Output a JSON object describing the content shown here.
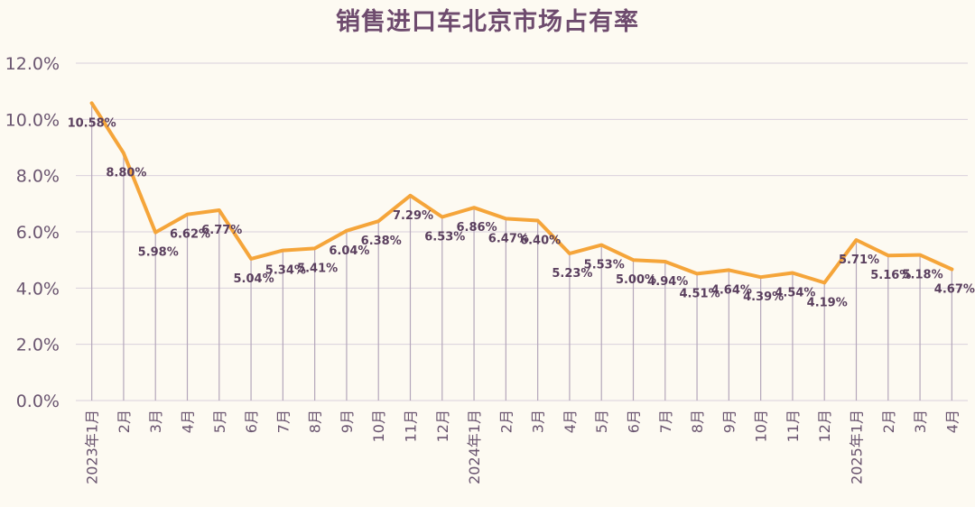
{
  "chart_data": {
    "type": "line",
    "title": "销售进口车北京市场占有率",
    "xlabel": "",
    "ylabel": "",
    "categories": [
      "2023年1月",
      "2月",
      "3月",
      "4月",
      "5月",
      "6月",
      "7月",
      "8月",
      "9月",
      "10月",
      "11月",
      "12月",
      "2024年1月",
      "2月",
      "3月",
      "4月",
      "5月",
      "6月",
      "7月",
      "8月",
      "9月",
      "10月",
      "11月",
      "12月",
      "2025年1月",
      "2月",
      "3月",
      "4月"
    ],
    "series": [
      {
        "values": [
          10.58,
          8.8,
          5.98,
          6.62,
          6.77,
          5.04,
          5.34,
          5.41,
          6.04,
          6.38,
          7.29,
          6.53,
          6.86,
          6.47,
          6.4,
          5.23,
          5.53,
          5.0,
          4.94,
          4.51,
          4.64,
          4.39,
          4.54,
          4.19,
          5.71,
          5.16,
          5.18,
          4.67
        ],
        "labels": [
          "10.58%",
          "8.80%",
          "5.98%",
          "6.62%",
          "6.77%",
          "5.04%",
          "5.34%",
          "5.41%",
          "6.04%",
          "6.38%",
          "7.29%",
          "6.53%",
          "6.86%",
          "6.47%",
          "6.40%",
          "5.23%",
          "5.53%",
          "5.00%",
          "4.94%",
          "4.51%",
          "4.64%",
          "4.39%",
          "4.54%",
          "4.19%",
          "5.71%",
          "5.16%",
          "5.18%",
          "4.67%"
        ],
        "color": "#f5a53a"
      }
    ],
    "ylim": [
      0,
      12
    ],
    "yticks": [
      0,
      2,
      4,
      6,
      8,
      10,
      12
    ],
    "ytick_labels": [
      "0.0%",
      "2.0%",
      "4.0%",
      "6.0%",
      "8.0%",
      "10.0%",
      "12.0%"
    ],
    "grid": true,
    "drop_lines": true,
    "colors": {
      "background": "#fdfaf2",
      "line": "#f5a53a",
      "grid": "#d9d0dc",
      "drop_line": "#b4a6bb",
      "text": "#6a5570",
      "title": "#6e4b6e"
    }
  }
}
